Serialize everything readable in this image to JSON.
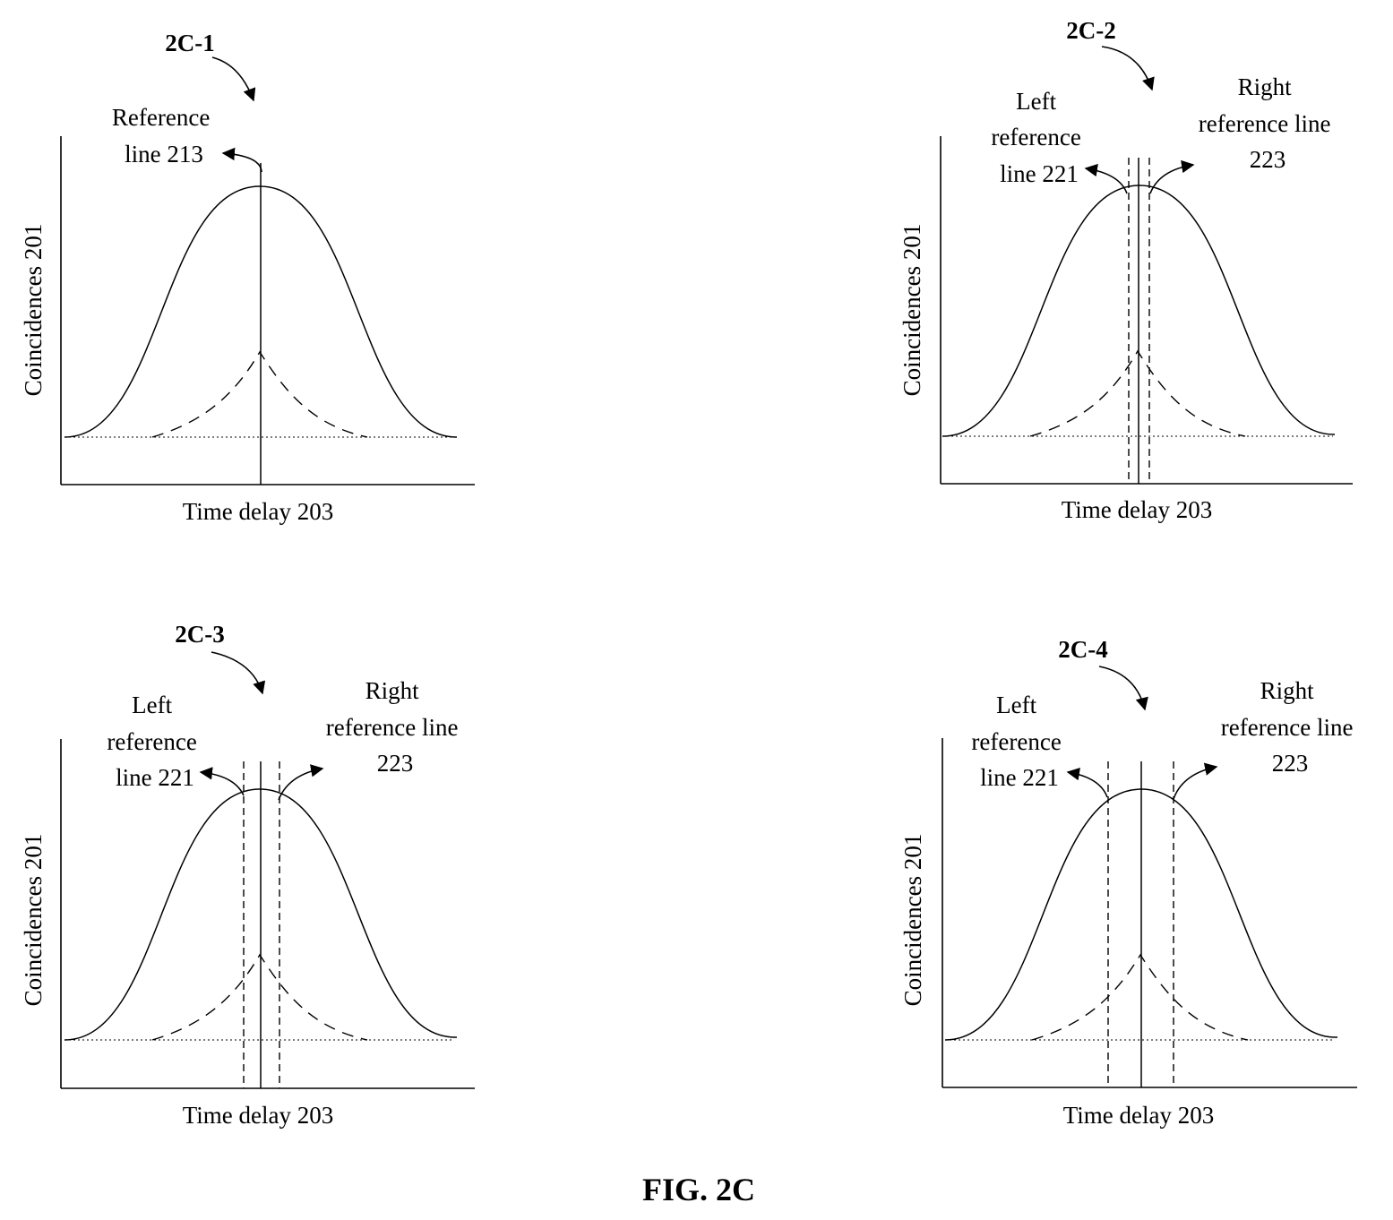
{
  "figure_title": "FIG. 2C",
  "panels": [
    {
      "id": "2C-1",
      "y_label": "Coincidences 201",
      "x_label": "Time delay 203",
      "center_line": {
        "label_lines": [
          "Reference",
          "line 213"
        ]
      }
    },
    {
      "id": "2C-2",
      "y_label": "Coincidences 201",
      "x_label": "Time delay 203",
      "left_line": {
        "label_lines": [
          "Left",
          "reference",
          "line 221"
        ]
      },
      "right_line": {
        "label_lines": [
          "Right",
          "reference line",
          "223"
        ]
      }
    },
    {
      "id": "2C-3",
      "y_label": "Coincidences 201",
      "x_label": "Time delay 203",
      "left_line": {
        "label_lines": [
          "Left",
          "reference",
          "line 221"
        ]
      },
      "right_line": {
        "label_lines": [
          "Right",
          "reference line",
          "223"
        ]
      }
    },
    {
      "id": "2C-4",
      "y_label": "Coincidences 201",
      "x_label": "Time delay 203",
      "left_line": {
        "label_lines": [
          "Left",
          "reference",
          "line 221"
        ]
      },
      "right_line": {
        "label_lines": [
          "Right",
          "reference line",
          "223"
        ]
      }
    }
  ]
}
